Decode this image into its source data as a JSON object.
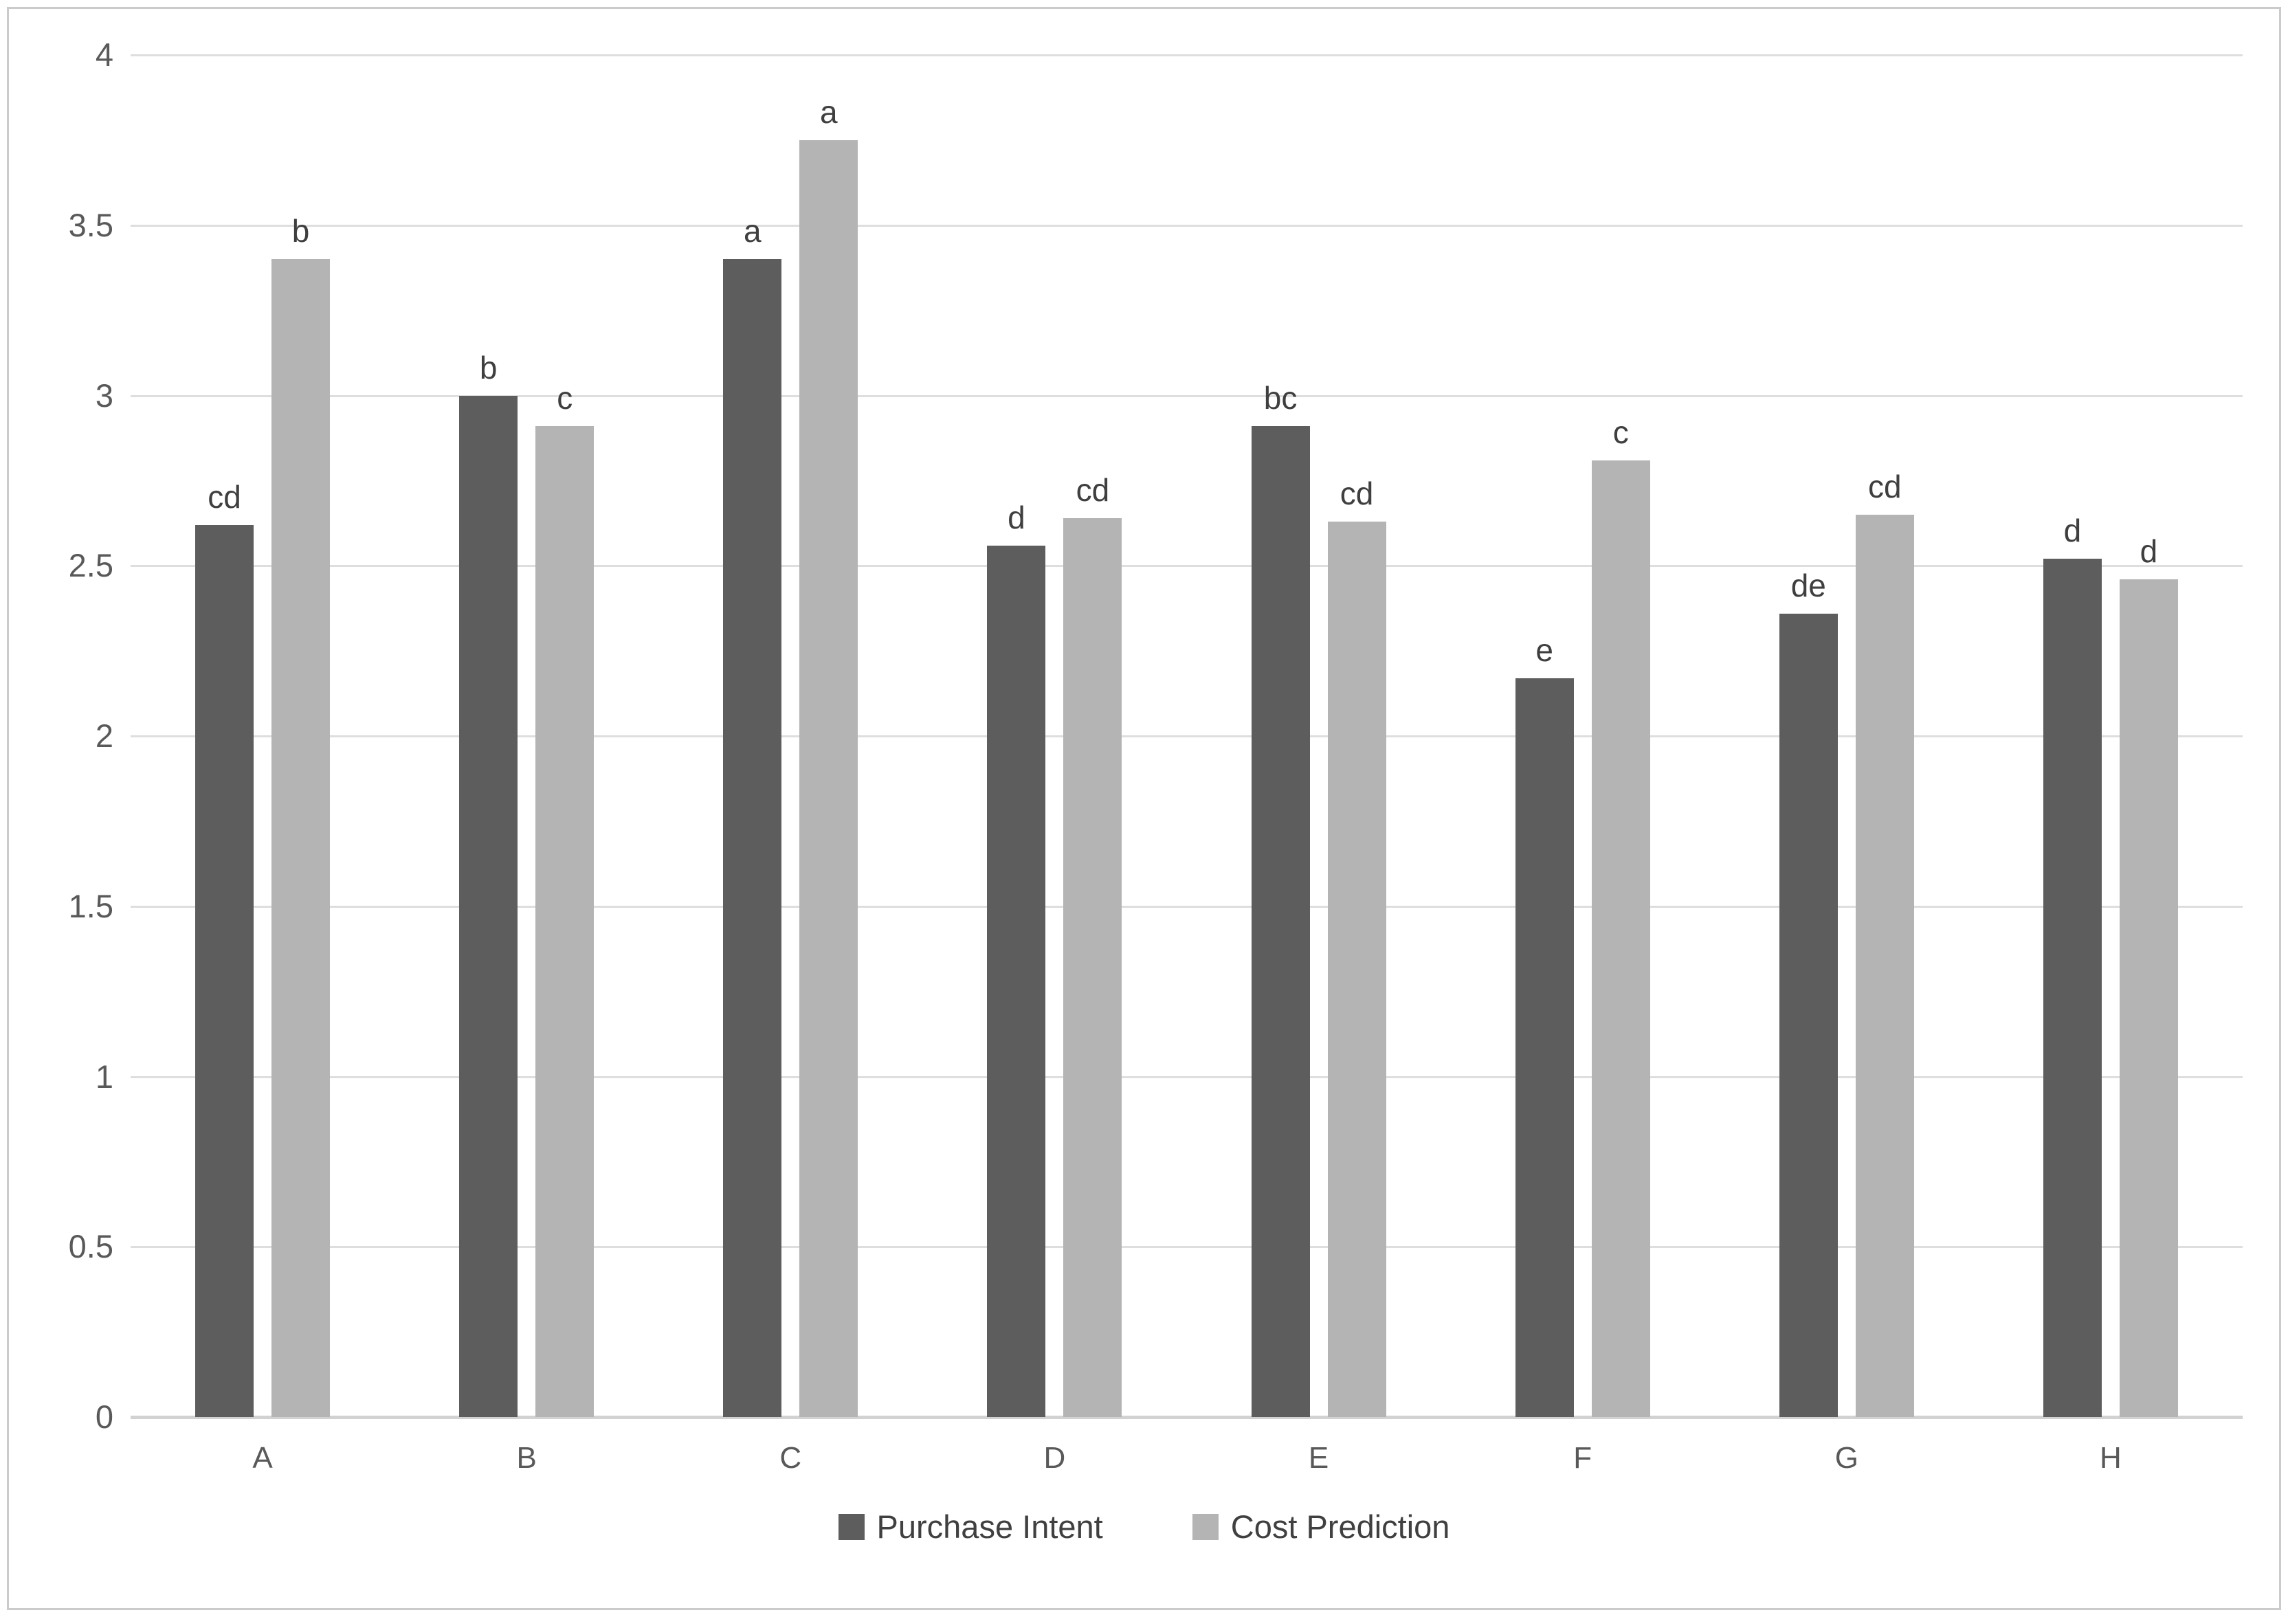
{
  "chart_data": {
    "type": "bar",
    "title": "",
    "xlabel": "",
    "ylabel": "",
    "categories": [
      "A",
      "B",
      "C",
      "D",
      "E",
      "F",
      "G",
      "H"
    ],
    "series": [
      {
        "name": "Purchase Intent",
        "color": "#5d5d5d",
        "values": [
          2.62,
          3.0,
          3.4,
          2.56,
          2.91,
          2.17,
          2.36,
          2.52
        ],
        "sig_labels": [
          "cd",
          "b",
          "a",
          "d",
          "bc",
          "e",
          "de",
          "d"
        ]
      },
      {
        "name": "Cost Prediction",
        "color": "#b4b4b4",
        "values": [
          3.4,
          2.91,
          3.75,
          2.64,
          2.63,
          2.81,
          2.65,
          2.46
        ],
        "sig_labels": [
          "b",
          "c",
          "a",
          "cd",
          "cd",
          "c",
          "cd",
          "d"
        ]
      }
    ],
    "ylim": [
      0,
      4
    ],
    "ytick_step": 0.5,
    "ytick_labels": [
      "0",
      "0.5",
      "1",
      "1.5",
      "2",
      "2.5",
      "3",
      "3.5",
      "4"
    ],
    "grid": true,
    "legend_position": "bottom"
  },
  "colors": {
    "background": "#ffffff",
    "frame_border": "#cbcbcb",
    "gridline": "#dedede",
    "axis_line": "#d2d2d2",
    "tick_label": "#595959",
    "data_label": "#3f3f3f",
    "legend_label": "#404040"
  }
}
